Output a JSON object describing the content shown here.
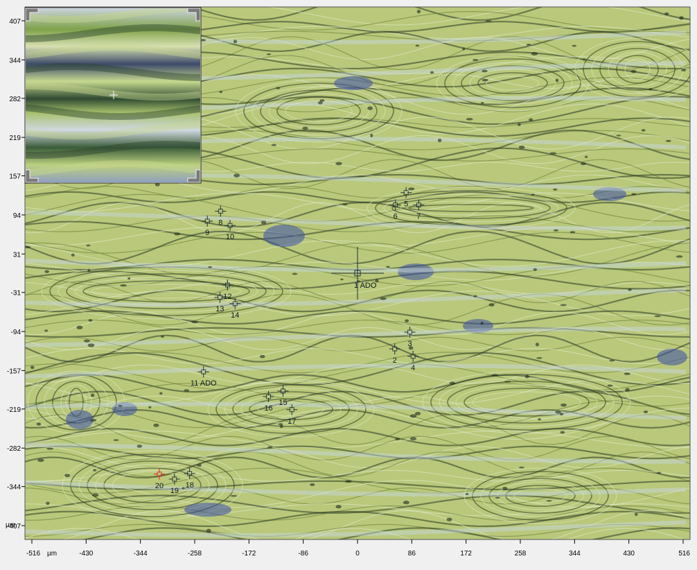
{
  "unit_label": "µm",
  "y_axis": {
    "ticks": [
      {
        "label": "407",
        "value": 407
      },
      {
        "label": "344",
        "value": 344
      },
      {
        "label": "282",
        "value": 282
      },
      {
        "label": "219",
        "value": 219
      },
      {
        "label": "157",
        "value": 157
      },
      {
        "label": "94",
        "value": 94
      },
      {
        "label": "31",
        "value": 31
      },
      {
        "label": "-31",
        "value": -31
      },
      {
        "label": "-94",
        "value": -94
      },
      {
        "label": "-157",
        "value": -157
      },
      {
        "label": "-219",
        "value": -219
      },
      {
        "label": "-282",
        "value": -282
      },
      {
        "label": "-344",
        "value": -344
      },
      {
        "label": "-407",
        "value": -407
      }
    ]
  },
  "x_axis": {
    "ticks": [
      {
        "label": "-516",
        "value": -516
      },
      {
        "label": "-430",
        "value": -430
      },
      {
        "label": "-344",
        "value": -344
      },
      {
        "label": "-258",
        "value": -258
      },
      {
        "label": "-172",
        "value": -172
      },
      {
        "label": "-86",
        "value": -86
      },
      {
        "label": "0",
        "value": 0
      },
      {
        "label": "86",
        "value": 86
      },
      {
        "label": "172",
        "value": 172
      },
      {
        "label": "258",
        "value": 258
      },
      {
        "label": "344",
        "value": 344
      },
      {
        "label": "430",
        "value": 430
      },
      {
        "label": "516",
        "value": 516
      }
    ]
  },
  "markers": [
    {
      "label": "1 ADO",
      "x": 0,
      "y": 0,
      "big": true
    },
    {
      "label": "2",
      "x": 59,
      "y": -122
    },
    {
      "label": "3",
      "x": 83,
      "y": -95
    },
    {
      "label": "4",
      "x": 88,
      "y": -134
    },
    {
      "label": "5",
      "x": 77,
      "y": 130
    },
    {
      "label": "6",
      "x": 60,
      "y": 110
    },
    {
      "label": "7",
      "x": 97,
      "y": 110
    },
    {
      "label": "8",
      "x": -217,
      "y": 100
    },
    {
      "label": "9",
      "x": -238,
      "y": 84
    },
    {
      "label": "10",
      "x": -202,
      "y": 77
    },
    {
      "label": "11 ADO",
      "x": -244,
      "y": -159
    },
    {
      "label": "12",
      "x": -206,
      "y": -19
    },
    {
      "label": "13",
      "x": -218,
      "y": -39
    },
    {
      "label": "14",
      "x": -194,
      "y": -49
    },
    {
      "label": "15",
      "x": -118,
      "y": -190
    },
    {
      "label": "16",
      "x": -141,
      "y": -199
    },
    {
      "label": "17",
      "x": -104,
      "y": -220
    },
    {
      "label": "18",
      "x": -266,
      "y": -323
    },
    {
      "label": "19",
      "x": -290,
      "y": -332
    },
    {
      "label": "20",
      "x": -314,
      "y": -324,
      "selected": true
    }
  ],
  "colors": {
    "tissue_base": "#b9c87a",
    "tissue_fiber_dark": "#2b3a22",
    "tissue_light": "#dfe7c6",
    "stain_blue": "#3a4ea8",
    "marker": "#1e2f38",
    "marker_selected": "#e02020",
    "axis_bg": "#f0f0f0"
  },
  "inset": {
    "name": "magnifier",
    "crosshair": "plus"
  }
}
